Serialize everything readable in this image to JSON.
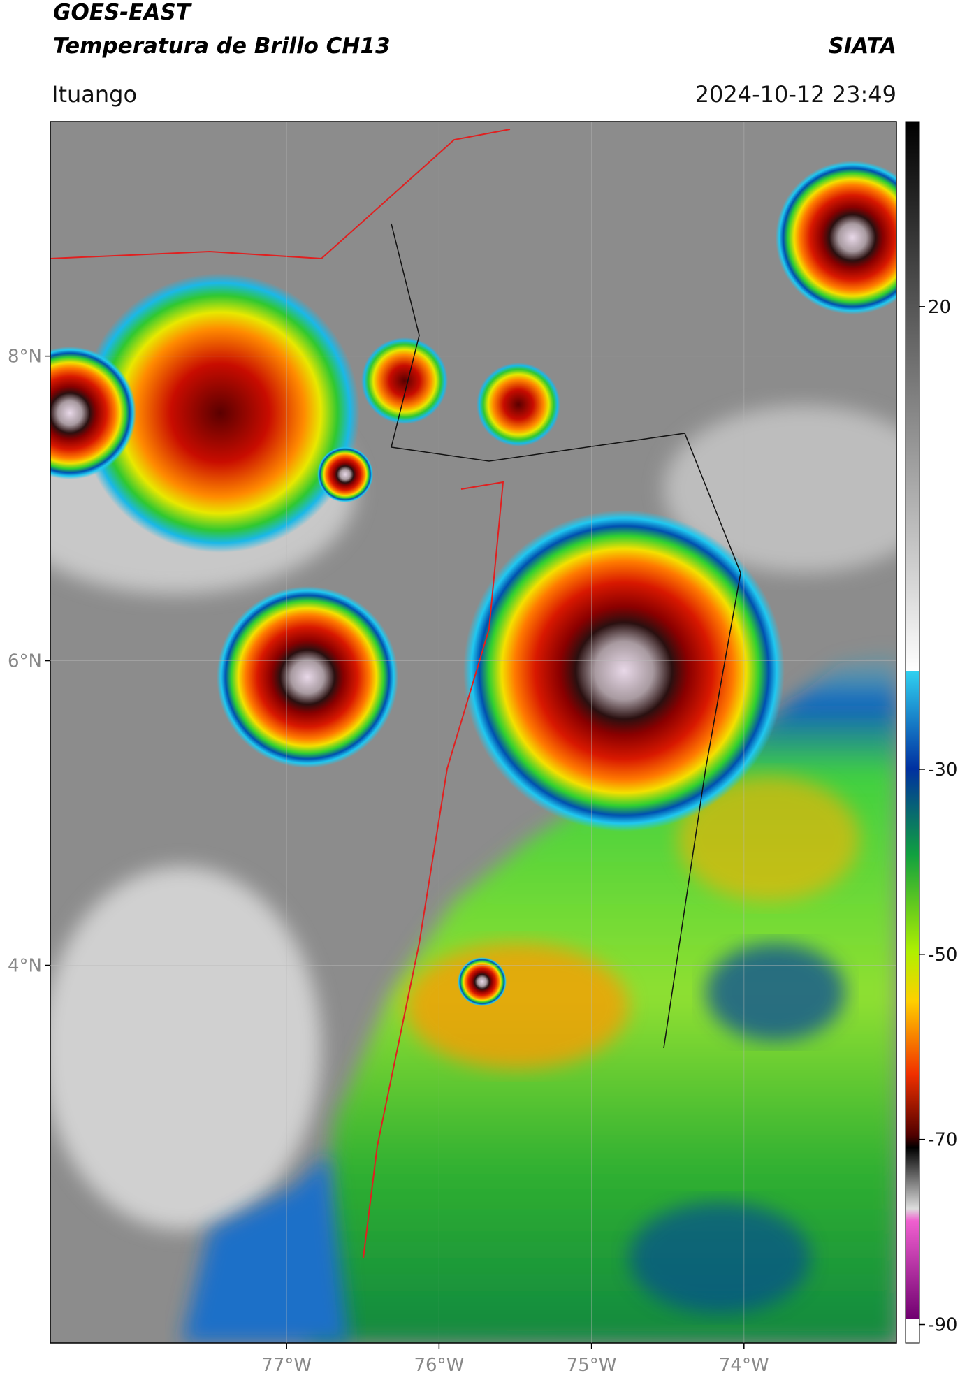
{
  "header": {
    "satellite": "GOES-EAST",
    "product": "Temperatura de Brillo CH13",
    "organization": "SIATA",
    "location": "Ituango",
    "timestamp": "2024-10-12 23:49"
  },
  "chart_data": {
    "type": "map",
    "xlim": [
      -78.55,
      -73.0
    ],
    "ylim": [
      1.52,
      9.54
    ],
    "xticks": [
      {
        "value": -77,
        "label": "77°W"
      },
      {
        "value": -76,
        "label": "76°W"
      },
      {
        "value": -75,
        "label": "75°W"
      },
      {
        "value": -74,
        "label": "74°W"
      }
    ],
    "yticks": [
      {
        "value": 8,
        "label": "8°N"
      },
      {
        "value": 6,
        "label": "6°N"
      },
      {
        "value": 4,
        "label": "4°N"
      }
    ],
    "grid": true,
    "colorbar": {
      "clim": [
        -92,
        40
      ],
      "ticks": [
        20,
        -30,
        -50,
        -70,
        -90
      ]
    }
  }
}
